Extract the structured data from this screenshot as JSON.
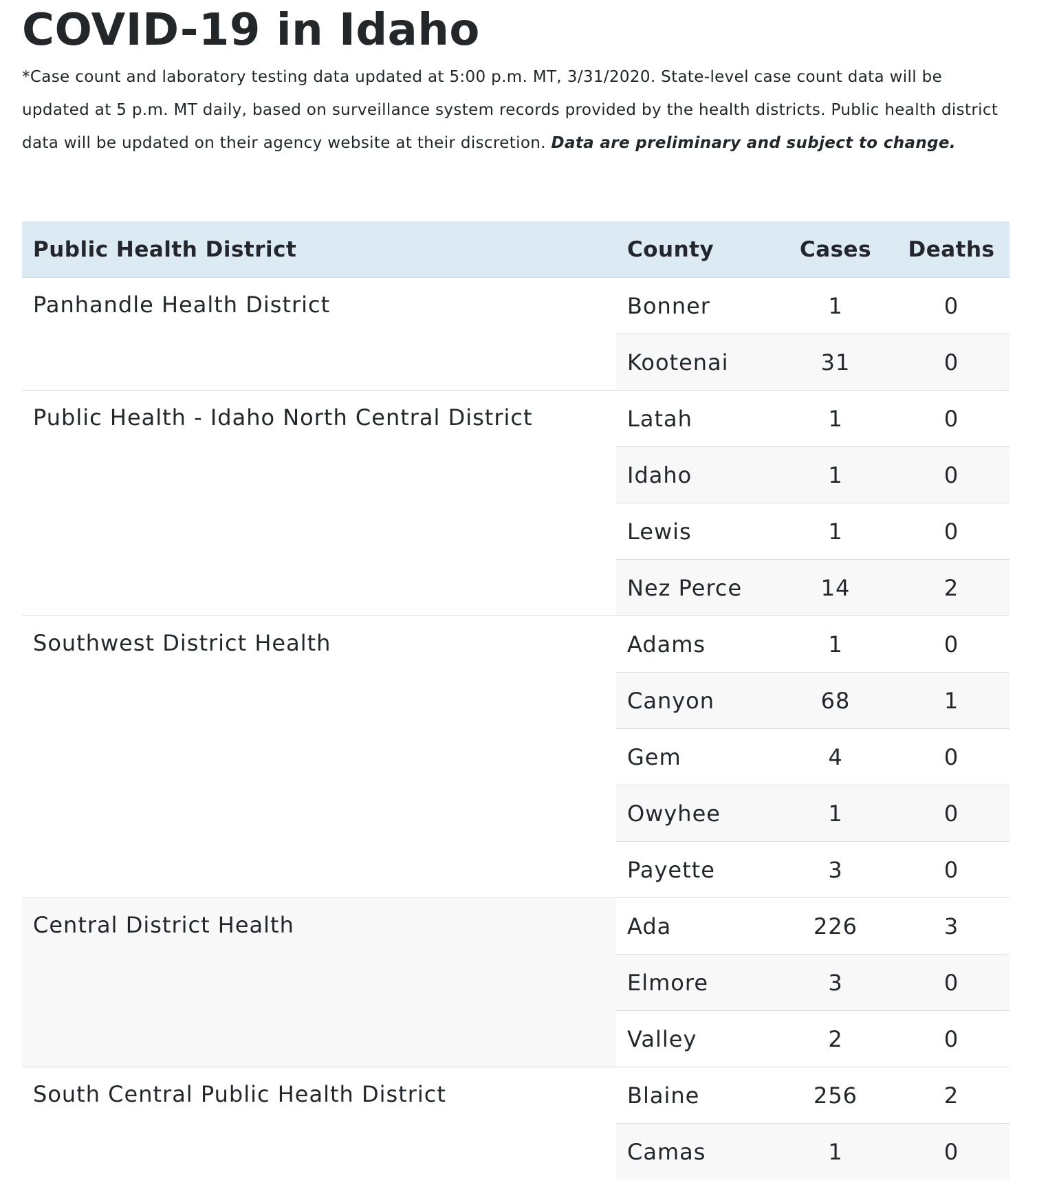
{
  "page": {
    "title": "COVID-19 in Idaho",
    "note_text": "*Case count and laboratory testing data updated at 5:00 p.m. MT, 3/31/2020. State-level case count data will be updated at 5 p.m. MT daily, based on surveillance system records provided by the health districts. Public health district data will be updated on their agency website at their discretion. ",
    "note_emphasis": "Data are preliminary and subject to change."
  },
  "table": {
    "headers": {
      "district": "Public Health District",
      "county": "County",
      "cases": "Cases",
      "deaths": "Deaths"
    },
    "header_color": "#dcebf3",
    "districts": [
      {
        "name": "Panhandle Health District",
        "counties": [
          {
            "county": "Bonner",
            "cases": "1",
            "deaths": "0"
          },
          {
            "county": "Kootenai",
            "cases": "31",
            "deaths": "0"
          }
        ]
      },
      {
        "name": "Public Health - Idaho North Central District",
        "counties": [
          {
            "county": "Latah",
            "cases": "1",
            "deaths": "0"
          },
          {
            "county": "Idaho",
            "cases": "1",
            "deaths": "0"
          },
          {
            "county": "Lewis",
            "cases": "1",
            "deaths": "0"
          },
          {
            "county": "Nez Perce",
            "cases": "14",
            "deaths": "2"
          }
        ]
      },
      {
        "name": "Southwest District Health",
        "counties": [
          {
            "county": "Adams",
            "cases": "1",
            "deaths": "0"
          },
          {
            "county": "Canyon",
            "cases": "68",
            "deaths": "1"
          },
          {
            "county": "Gem",
            "cases": "4",
            "deaths": "0"
          },
          {
            "county": "Owyhee",
            "cases": "1",
            "deaths": "0"
          },
          {
            "county": "Payette",
            "cases": "3",
            "deaths": "0"
          }
        ]
      },
      {
        "name": "Central District Health",
        "counties": [
          {
            "county": "Ada",
            "cases": "226",
            "deaths": "3"
          },
          {
            "county": "Elmore",
            "cases": "3",
            "deaths": "0"
          },
          {
            "county": "Valley",
            "cases": "2",
            "deaths": "0"
          }
        ]
      },
      {
        "name": "South Central Public Health District",
        "counties": [
          {
            "county": "Blaine",
            "cases": "256",
            "deaths": "2"
          },
          {
            "county": "Camas",
            "cases": "1",
            "deaths": "0"
          }
        ]
      }
    ]
  }
}
